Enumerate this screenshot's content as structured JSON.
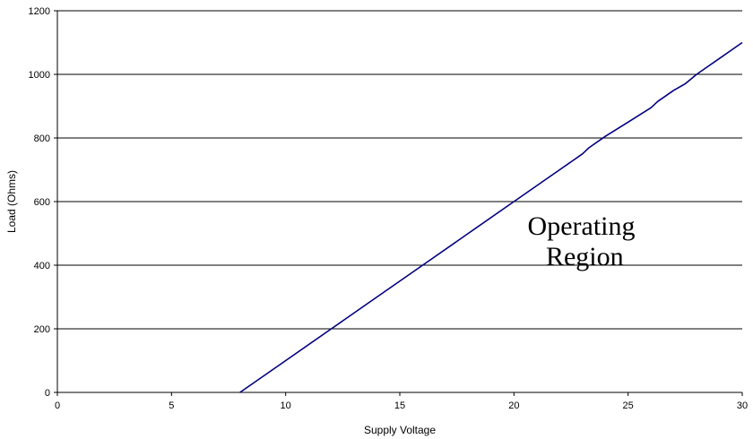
{
  "chart_data": {
    "type": "line",
    "title": "",
    "xlabel": "Supply Voltage",
    "ylabel": "Load (Ohms)",
    "xlim": [
      0,
      30
    ],
    "ylim": [
      0,
      1200
    ],
    "x_ticks": [
      0,
      5,
      10,
      15,
      20,
      25,
      30
    ],
    "y_ticks": [
      0,
      200,
      400,
      600,
      800,
      1000,
      1200
    ],
    "grid": "horizontal",
    "legend": "none",
    "series": [
      {
        "x": [
          8,
          10,
          12,
          14,
          16,
          18,
          20,
          22,
          23,
          23.3,
          24,
          25,
          26,
          26.3,
          27,
          27.5,
          28,
          28.5,
          29,
          29.5,
          30
        ],
        "y": [
          0,
          100,
          200,
          300,
          400,
          500,
          600,
          700,
          750,
          770,
          805,
          850,
          895,
          915,
          950,
          970,
          1000,
          1025,
          1050,
          1075,
          1100
        ],
        "color": "#000080"
      }
    ],
    "annotations": [
      {
        "line1": "Operating",
        "line2": "Region",
        "x": 23.1,
        "y": 490
      }
    ]
  }
}
